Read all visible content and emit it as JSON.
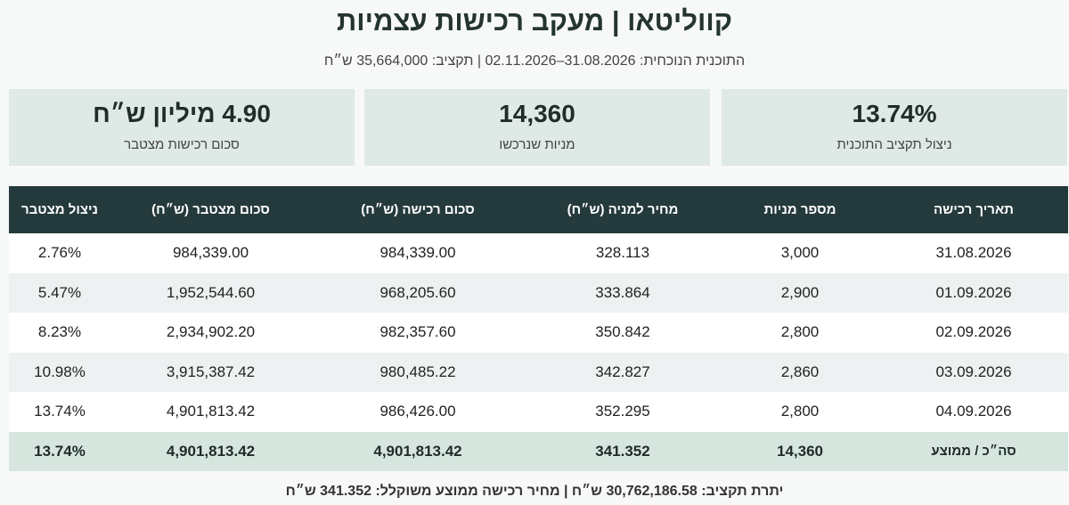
{
  "header": {
    "title": "קווליטאו | מעקב רכישות עצמיות",
    "subtitle": "התוכנית  הנוכחית: 31.08.2026–02.11.2026 | תקציב: 35,664,000 ש״ח"
  },
  "cards": [
    {
      "value": "13.74%",
      "label": "ניצול תקציב התוכנית"
    },
    {
      "value": "14,360",
      "label": "מניות שנרכשו"
    },
    {
      "value": "4.90 מיליון ש״ח",
      "label": "סכום רכישות מצטבר"
    }
  ],
  "table": {
    "columns": [
      "תאריך רכישה",
      "מספר מניות",
      "מחיר למניה (ש״ח)",
      "סכום רכישה (ש״ח)",
      "סכום מצטבר (ש״ח)",
      "ניצול מצטבר"
    ],
    "rows": [
      [
        "31.08.2026",
        "3,000",
        "328.113",
        "984,339.00",
        "984,339.00",
        "2.76%"
      ],
      [
        "01.09.2026",
        "2,900",
        "333.864",
        "968,205.60",
        "1,952,544.60",
        "5.47%"
      ],
      [
        "02.09.2026",
        "2,800",
        "350.842",
        "982,357.60",
        "2,934,902.20",
        "8.23%"
      ],
      [
        "03.09.2026",
        "2,860",
        "342.827",
        "980,485.22",
        "3,915,387.42",
        "10.98%"
      ],
      [
        "04.09.2026",
        "2,800",
        "352.295",
        "986,426.00",
        "4,901,813.42",
        "13.74%"
      ]
    ],
    "total": [
      "סה״כ / ממוצע",
      "14,360",
      "341.352",
      "4,901,813.42",
      "4,901,813.42",
      "13.74%"
    ]
  },
  "footer": {
    "text": "יתרת תקציב: 30,762,186.58 ש״ח | מחיר רכישה ממוצע משוקלל: 341.352 ש״ח"
  },
  "colors": {
    "header_bg": "#253a3c",
    "card_bg": "#dfe9e5",
    "total_row_bg": "#d6e6df"
  }
}
